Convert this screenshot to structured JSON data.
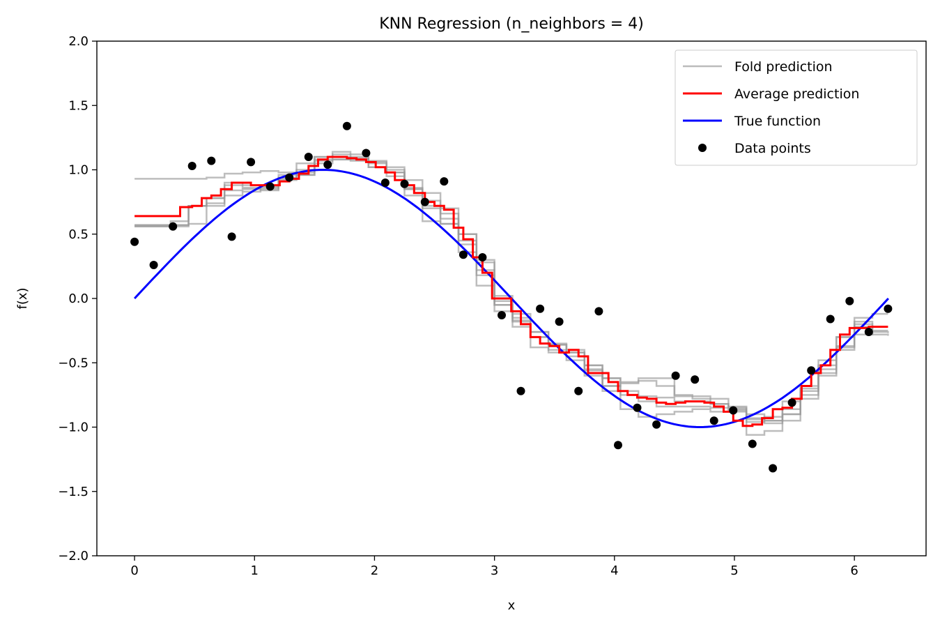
{
  "chart_data": {
    "type": "line",
    "title": "KNN Regression (n_neighbors = 4)",
    "xlabel": "x",
    "ylabel": "f(x)",
    "xlim": [
      -0.3142,
      6.5973
    ],
    "ylim": [
      -2.0,
      2.0
    ],
    "xticks": [
      0,
      1,
      2,
      3,
      4,
      5,
      6
    ],
    "xtick_labels": [
      "0",
      "1",
      "2",
      "3",
      "4",
      "5",
      "6"
    ],
    "yticks": [
      -2.0,
      -1.5,
      -1.0,
      -0.5,
      0.0,
      0.5,
      1.0,
      1.5,
      2.0
    ],
    "ytick_labels": [
      "−2.0",
      "−1.5",
      "−1.0",
      "−0.5",
      "0.0",
      "0.5",
      "1.0",
      "1.5",
      "2.0"
    ],
    "grid": false,
    "legend": {
      "position": "top-right",
      "entries": [
        {
          "label": "Fold prediction",
          "kind": "line",
          "color": "#bbbbbb"
        },
        {
          "label": "Average prediction",
          "kind": "line",
          "color": "#ff0000"
        },
        {
          "label": "True function",
          "kind": "line",
          "color": "#0000ff"
        },
        {
          "label": "Data points",
          "kind": "marker",
          "color": "#000000"
        }
      ]
    },
    "colors": {
      "fold": "#bbbbbb",
      "average": "#ff0000",
      "truth": "#0000ff",
      "points": "#000000"
    },
    "points": {
      "x": [
        0.0,
        0.16,
        0.32,
        0.48,
        0.64,
        0.81,
        0.97,
        1.13,
        1.29,
        1.45,
        1.61,
        1.77,
        1.93,
        2.09,
        2.25,
        2.42,
        2.58,
        2.74,
        2.9,
        3.06,
        3.22,
        3.38,
        3.54,
        3.7,
        3.87,
        4.03,
        4.19,
        4.35,
        4.51,
        4.67,
        4.83,
        4.99,
        5.15,
        5.32,
        5.48,
        5.64,
        5.8,
        5.96,
        6.12,
        6.28
      ],
      "y": [
        0.44,
        0.26,
        0.56,
        1.03,
        1.07,
        0.48,
        1.06,
        0.87,
        0.94,
        1.1,
        1.04,
        1.34,
        1.13,
        0.9,
        0.89,
        0.75,
        0.91,
        0.34,
        0.32,
        -0.13,
        -0.72,
        -0.08,
        -0.18,
        -0.72,
        -0.1,
        -1.14,
        -0.85,
        -0.98,
        -0.6,
        -0.63,
        -0.95,
        -0.87,
        -1.13,
        -1.32,
        -0.81,
        -0.56,
        -0.16,
        -0.02,
        -0.26,
        -0.08
      ]
    },
    "truth": {
      "function": "sin(x)",
      "x_range": [
        0.0,
        6.2832
      ]
    },
    "average": {
      "x": [
        0.0,
        0.15,
        0.32,
        0.38,
        0.48,
        0.56,
        0.64,
        0.72,
        0.81,
        0.88,
        0.97,
        1.05,
        1.13,
        1.21,
        1.29,
        1.37,
        1.45,
        1.53,
        1.61,
        1.7,
        1.77,
        1.85,
        1.93,
        2.01,
        2.09,
        2.17,
        2.25,
        2.33,
        2.42,
        2.5,
        2.58,
        2.66,
        2.74,
        2.82,
        2.9,
        2.98,
        3.06,
        3.14,
        3.22,
        3.3,
        3.38,
        3.46,
        3.54,
        3.62,
        3.7,
        3.78,
        3.87,
        3.95,
        4.03,
        4.11,
        4.19,
        4.27,
        4.35,
        4.43,
        4.51,
        4.59,
        4.67,
        4.75,
        4.83,
        4.91,
        4.99,
        5.07,
        5.15,
        5.23,
        5.32,
        5.4,
        5.48,
        5.56,
        5.64,
        5.72,
        5.8,
        5.88,
        5.96,
        6.12,
        6.28
      ],
      "y": [
        0.64,
        0.64,
        0.64,
        0.71,
        0.72,
        0.78,
        0.8,
        0.85,
        0.9,
        0.9,
        0.88,
        0.88,
        0.88,
        0.91,
        0.93,
        0.97,
        1.03,
        1.08,
        1.1,
        1.1,
        1.09,
        1.08,
        1.06,
        1.02,
        0.98,
        0.92,
        0.88,
        0.82,
        0.75,
        0.72,
        0.69,
        0.55,
        0.46,
        0.32,
        0.2,
        0.0,
        0.0,
        -0.1,
        -0.2,
        -0.3,
        -0.35,
        -0.37,
        -0.42,
        -0.4,
        -0.45,
        -0.58,
        -0.58,
        -0.65,
        -0.72,
        -0.75,
        -0.77,
        -0.78,
        -0.81,
        -0.82,
        -0.81,
        -0.8,
        -0.8,
        -0.81,
        -0.84,
        -0.88,
        -0.95,
        -0.99,
        -0.98,
        -0.93,
        -0.86,
        -0.85,
        -0.78,
        -0.68,
        -0.58,
        -0.52,
        -0.4,
        -0.28,
        -0.23,
        -0.22,
        -0.22
      ]
    },
    "folds": [
      {
        "x": [
          0.0,
          0.1,
          0.25,
          0.45,
          0.6,
          0.75,
          0.9,
          1.05,
          1.2,
          1.35,
          1.5,
          1.65,
          1.8,
          1.95,
          2.1,
          2.25,
          2.4,
          2.55,
          2.7,
          2.85,
          3.0,
          3.15,
          3.3,
          3.45,
          3.6,
          3.75,
          3.9,
          4.05,
          4.2,
          4.35,
          4.5,
          4.65,
          4.8,
          4.95,
          5.1,
          5.25,
          5.4,
          5.55,
          5.7,
          5.85,
          6.0,
          6.15,
          6.28
        ],
        "y": [
          0.93,
          0.93,
          0.93,
          0.93,
          0.94,
          0.97,
          0.98,
          0.99,
          0.98,
          1.05,
          1.08,
          1.08,
          1.1,
          1.07,
          1.02,
          0.92,
          0.82,
          0.7,
          0.5,
          0.3,
          -0.05,
          -0.18,
          -0.3,
          -0.36,
          -0.45,
          -0.55,
          -0.62,
          -0.65,
          -0.64,
          -0.68,
          -0.75,
          -0.78,
          -0.82,
          -0.86,
          -0.93,
          -0.95,
          -0.9,
          -0.78,
          -0.6,
          -0.38,
          -0.2,
          -0.22,
          -0.22
        ]
      },
      {
        "x": [
          0.0,
          0.15,
          0.3,
          0.45,
          0.6,
          0.75,
          0.9,
          1.05,
          1.2,
          1.35,
          1.5,
          1.65,
          1.8,
          1.95,
          2.1,
          2.25,
          2.4,
          2.55,
          2.7,
          2.85,
          3.0,
          3.15,
          3.3,
          3.45,
          3.6,
          3.75,
          3.9,
          4.05,
          4.2,
          4.35,
          4.5,
          4.65,
          4.8,
          4.95,
          5.1,
          5.25,
          5.4,
          5.55,
          5.7,
          5.85,
          6.0,
          6.15,
          6.28
        ],
        "y": [
          0.57,
          0.57,
          0.57,
          0.72,
          0.78,
          0.88,
          0.86,
          0.87,
          0.96,
          0.98,
          1.1,
          1.12,
          1.09,
          1.05,
          1.0,
          0.86,
          0.72,
          0.66,
          0.45,
          0.22,
          -0.02,
          -0.15,
          -0.26,
          -0.35,
          -0.4,
          -0.52,
          -0.68,
          -0.75,
          -0.8,
          -0.84,
          -0.84,
          -0.84,
          -0.85,
          -0.87,
          -1.06,
          -1.03,
          -0.95,
          -0.75,
          -0.52,
          -0.4,
          -0.28,
          -0.26,
          -0.27
        ]
      },
      {
        "x": [
          0.0,
          0.15,
          0.3,
          0.45,
          0.6,
          0.75,
          0.9,
          1.05,
          1.2,
          1.35,
          1.5,
          1.65,
          1.8,
          1.95,
          2.1,
          2.25,
          2.4,
          2.55,
          2.7,
          2.85,
          3.0,
          3.15,
          3.3,
          3.45,
          3.6,
          3.75,
          3.9,
          4.05,
          4.2,
          4.35,
          4.5,
          4.65,
          4.8,
          4.95,
          5.1,
          5.25,
          5.4,
          5.55,
          5.7,
          5.85,
          6.0,
          6.15,
          6.28
        ],
        "y": [
          0.56,
          0.56,
          0.56,
          0.58,
          0.72,
          0.84,
          0.85,
          0.86,
          0.93,
          1.0,
          1.1,
          1.14,
          1.12,
          1.06,
          0.98,
          0.8,
          0.6,
          0.58,
          0.36,
          0.1,
          -0.1,
          -0.22,
          -0.38,
          -0.42,
          -0.48,
          -0.6,
          -0.72,
          -0.86,
          -0.92,
          -0.9,
          -0.88,
          -0.86,
          -0.88,
          -0.88,
          -0.96,
          -0.92,
          -0.86,
          -0.7,
          -0.55,
          -0.3,
          -0.18,
          -0.25,
          -0.25
        ]
      },
      {
        "x": [
          0.0,
          0.15,
          0.3,
          0.45,
          0.6,
          0.75,
          0.9,
          1.05,
          1.2,
          1.35,
          1.5,
          1.65,
          1.8,
          1.95,
          2.1,
          2.25,
          2.4,
          2.55,
          2.7,
          2.85,
          3.0,
          3.15,
          3.3,
          3.45,
          3.6,
          3.75,
          3.9,
          4.05,
          4.2,
          4.35,
          4.5,
          4.65,
          4.8,
          4.95,
          5.1,
          5.25,
          5.4,
          5.55,
          5.7,
          5.85,
          6.0,
          6.15,
          6.28
        ],
        "y": [
          0.56,
          0.56,
          0.6,
          0.72,
          0.78,
          0.9,
          0.88,
          0.84,
          0.94,
          0.96,
          1.05,
          1.1,
          1.08,
          1.02,
          0.98,
          0.85,
          0.7,
          0.58,
          0.42,
          0.18,
          -0.05,
          -0.12,
          -0.26,
          -0.4,
          -0.42,
          -0.56,
          -0.68,
          -0.66,
          -0.62,
          -0.62,
          -0.76,
          -0.76,
          -0.78,
          -0.84,
          -0.9,
          -0.95,
          -0.8,
          -0.68,
          -0.48,
          -0.3,
          -0.15,
          -0.12,
          -0.12
        ]
      },
      {
        "x": [
          0.0,
          0.15,
          0.3,
          0.45,
          0.6,
          0.75,
          0.9,
          1.05,
          1.2,
          1.35,
          1.5,
          1.65,
          1.8,
          1.95,
          2.1,
          2.25,
          2.4,
          2.55,
          2.7,
          2.85,
          3.0,
          3.15,
          3.3,
          3.45,
          3.6,
          3.75,
          3.9,
          4.05,
          4.2,
          4.35,
          4.5,
          4.65,
          4.8,
          4.95,
          5.1,
          5.25,
          5.4,
          5.55,
          5.7,
          5.85,
          6.0,
          6.15,
          6.28
        ],
        "y": [
          0.57,
          0.57,
          0.57,
          0.72,
          0.74,
          0.8,
          0.83,
          0.85,
          0.92,
          0.96,
          1.07,
          1.08,
          1.07,
          1.02,
          0.95,
          0.85,
          0.76,
          0.62,
          0.5,
          0.28,
          0.02,
          -0.17,
          -0.3,
          -0.36,
          -0.42,
          -0.52,
          -0.62,
          -0.72,
          -0.76,
          -0.77,
          -0.8,
          -0.8,
          -0.82,
          -0.85,
          -0.94,
          -0.97,
          -0.9,
          -0.72,
          -0.58,
          -0.37,
          -0.22,
          -0.28,
          -0.29
        ]
      }
    ]
  }
}
